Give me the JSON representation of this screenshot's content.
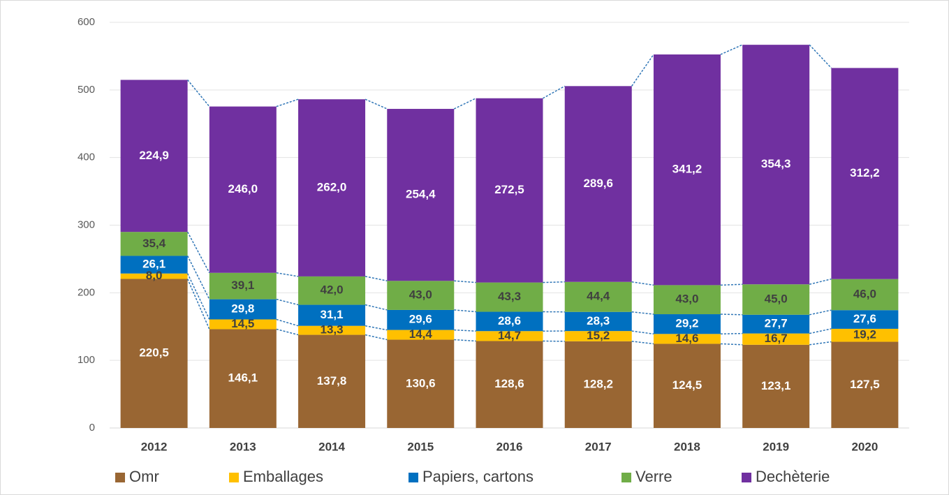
{
  "chart_data": {
    "type": "stacked_bar",
    "categories": [
      "2012",
      "2013",
      "2014",
      "2015",
      "2016",
      "2017",
      "2018",
      "2019",
      "2020"
    ],
    "series": [
      {
        "name": "Omr",
        "color": "#996633",
        "values": [
          220.5,
          146.1,
          137.8,
          130.6,
          128.6,
          128.2,
          124.5,
          123.1,
          127.5
        ],
        "value_labels": [
          "220,5",
          "146,1",
          "137,8",
          "130,6",
          "128,6",
          "128,2",
          "124,5",
          "123,1",
          "127,5"
        ]
      },
      {
        "name": "Emballages",
        "color": "#ffc000",
        "values": [
          8.0,
          14.5,
          13.3,
          14.4,
          14.7,
          15.2,
          14.6,
          16.7,
          19.2
        ],
        "value_labels": [
          "8,0",
          "14,5",
          "13,3",
          "14,4",
          "14,7",
          "15,2",
          "14,6",
          "16,7",
          "19,2"
        ]
      },
      {
        "name": "Papiers, cartons",
        "color": "#0070c0",
        "values": [
          26.1,
          29.8,
          31.1,
          29.6,
          28.6,
          28.3,
          29.2,
          27.7,
          27.6
        ],
        "value_labels": [
          "26,1",
          "29,8",
          "31,1",
          "29,6",
          "28,6",
          "28,3",
          "29,2",
          "27,7",
          "27,6"
        ]
      },
      {
        "name": "Verre",
        "color": "#70ad47",
        "values": [
          35.4,
          39.1,
          42.0,
          43.0,
          43.3,
          44.4,
          43.0,
          45.0,
          46.0
        ],
        "value_labels": [
          "35,4",
          "39,1",
          "42,0",
          "43,0",
          "43,3",
          "44,4",
          "43,0",
          "45,0",
          "46,0"
        ]
      },
      {
        "name": "Dechèterie",
        "color": "#7030a0",
        "values": [
          224.9,
          246.0,
          262.0,
          254.4,
          272.5,
          289.6,
          341.2,
          354.3,
          312.2
        ],
        "value_labels": [
          "224,9",
          "246,0",
          "262,0",
          "254,4",
          "272,5",
          "289,6",
          "341,2",
          "354,3",
          "312,2"
        ]
      }
    ],
    "ylim": [
      0,
      600
    ],
    "yticks": [
      0,
      100,
      200,
      300,
      400,
      500,
      600
    ],
    "grid": true,
    "legend": "bottom",
    "connector_color": "#2e75b6"
  }
}
